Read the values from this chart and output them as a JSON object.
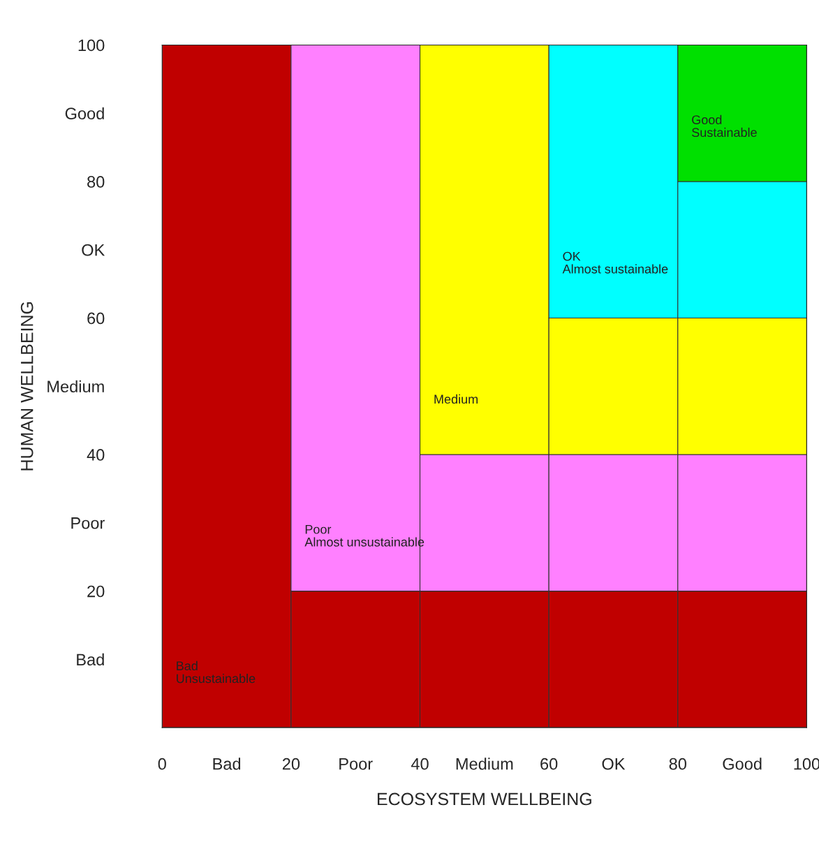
{
  "chart_data": {
    "type": "bar",
    "stacked": true,
    "xlabel": "ECOSYSTEM WELLBEING",
    "ylabel": "HUMAN WELLBEING",
    "x": [
      10,
      30,
      50,
      70,
      90
    ],
    "xlim": [
      0,
      100
    ],
    "ylim": [
      0,
      100
    ],
    "xticks": [
      0,
      20,
      40,
      60,
      80,
      100,
      {
        "value": 10,
        "label": "Bad"
      },
      {
        "value": 30,
        "label": "Poor"
      },
      {
        "value": 50,
        "label": "Medium"
      },
      {
        "value": 70,
        "label": "OK"
      },
      {
        "value": 90,
        "label": "Good"
      }
    ],
    "yticks": [
      20,
      40,
      60,
      80,
      100,
      {
        "value": 10,
        "label": "Bad"
      },
      {
        "value": 30,
        "label": "Poor"
      },
      {
        "value": 50,
        "label": "Medium"
      },
      {
        "value": 70,
        "label": "OK"
      },
      {
        "value": 90,
        "label": "Good"
      }
    ],
    "series": [
      {
        "name": "Bad\nUnsustainable",
        "color": "#c00000",
        "values": [
          100,
          20,
          20,
          20,
          20
        ]
      },
      {
        "name": "Poor\nAlmost unsustainable",
        "color": "#ff80ff",
        "values": [
          0,
          80,
          20,
          20,
          20
        ]
      },
      {
        "name": "Medium",
        "color": "#ffff00",
        "values": [
          0,
          0,
          60,
          20,
          20
        ]
      },
      {
        "name": "OK\nAlmost sustainable",
        "color": "#00ffff",
        "values": [
          0,
          0,
          0,
          40,
          20
        ]
      },
      {
        "name": "Good\nSustainable",
        "color": "#00e000",
        "values": [
          0,
          0,
          0,
          0,
          20
        ]
      }
    ]
  }
}
